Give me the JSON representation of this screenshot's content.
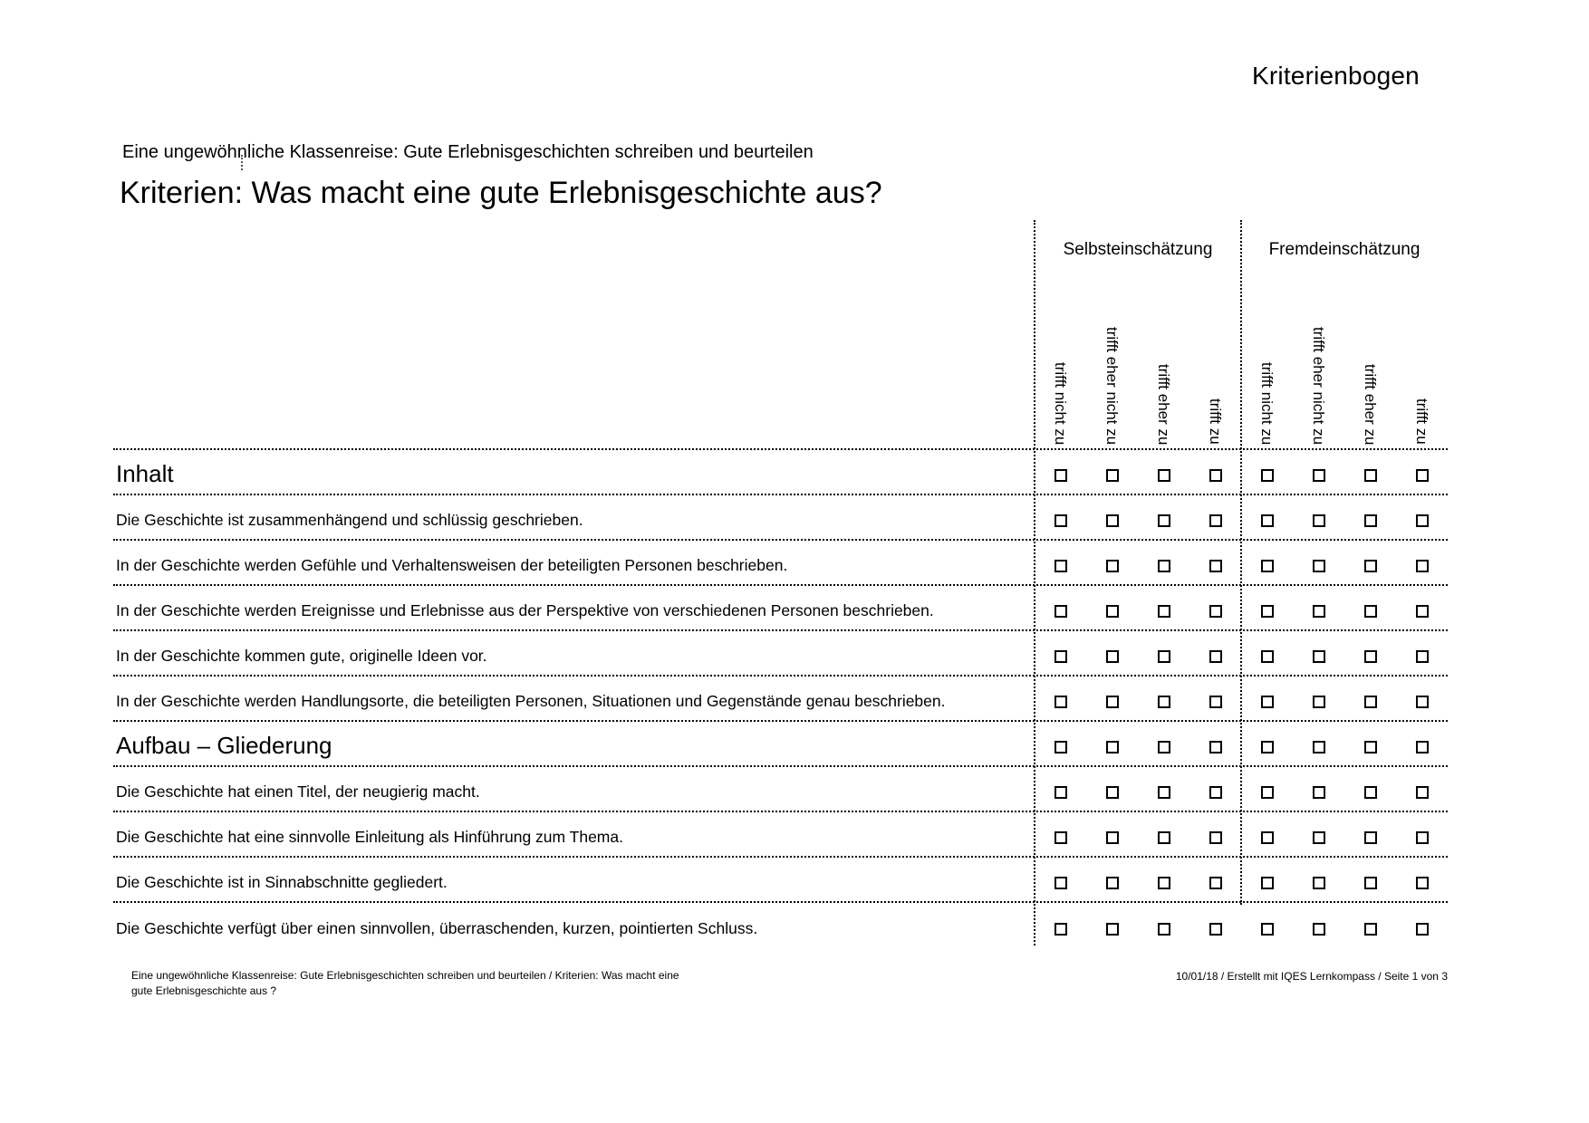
{
  "document": {
    "corner_label": "Kriterienbogen",
    "unit_line": "Eine ungewöhnliche Klassenreise: Gute Erlebnisgeschichten schreiben und beurteilen",
    "title": "Kriterien: Was macht eine gute Erlebnisgeschichte aus?"
  },
  "assessment_table": {
    "groups": [
      {
        "label": "Selbsteinschätzung",
        "options": [
          "trifft nicht zu",
          "trifft eher nicht zu",
          "trifft eher zu",
          "trifft zu"
        ]
      },
      {
        "label": "Fremdeinschätzung",
        "options": [
          "trifft nicht zu",
          "trifft eher nicht zu",
          "trifft eher zu",
          "trifft zu"
        ]
      }
    ],
    "checkbox_state_all": "unchecked",
    "rows": [
      {
        "type": "section",
        "label": "Inhalt"
      },
      {
        "type": "item",
        "label": "Die Geschichte ist zusammenhängend und schlüssig geschrieben."
      },
      {
        "type": "item",
        "label": "In der Geschichte werden Gefühle und Verhaltensweisen der beteiligten Personen beschrieben."
      },
      {
        "type": "item",
        "label": "In der Geschichte werden Ereignisse und Erlebnisse aus der Perspektive von verschiedenen Personen beschrieben."
      },
      {
        "type": "item",
        "label": "In der Geschichte kommen gute, originelle Ideen vor."
      },
      {
        "type": "item",
        "label": "In der Geschichte werden Handlungsorte, die beteiligten Personen, Situationen und Gegenstände genau beschrieben."
      },
      {
        "type": "section",
        "label": "Aufbau – Gliederung"
      },
      {
        "type": "item",
        "label": "Die Geschichte hat einen Titel, der neugierig macht."
      },
      {
        "type": "item",
        "label": "Die Geschichte hat eine sinnvolle Einleitung als Hinführung zum Thema."
      },
      {
        "type": "item",
        "label": "Die Geschichte ist in Sinnabschnitte gegliedert."
      },
      {
        "type": "item",
        "label": "Die Geschichte verfügt über einen sinnvollen, überraschenden, kurzen, pointierten Schluss."
      }
    ]
  },
  "footer": {
    "left": "Eine ungewöhnliche Klassenreise: Gute Erlebnisgeschichten schreiben und beurteilen / Kriterien: Was macht eine gute Erlebnisgeschichte aus ?",
    "right": "10/01/18 / Erstellt mit IQES Lernkompass / Seite 1 von 3"
  },
  "colors": {
    "text": "#000000",
    "background": "#ffffff"
  }
}
